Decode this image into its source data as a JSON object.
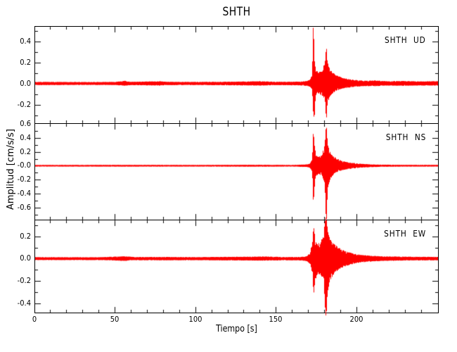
{
  "chart_data": {
    "type": "line",
    "title": "SHTH",
    "xlabel": "Tiempo [s]",
    "ylabel": "Amplitud [cm/s/s]",
    "trace_color": "#ff0000",
    "axis_color": "#000000",
    "background_color": "#ffffff",
    "grid": false,
    "x_range": [
      0,
      250
    ],
    "x_minor_step_s": 10,
    "x_major_ticks": [
      {
        "value": 0,
        "label": "0"
      },
      {
        "value": 50,
        "label": "50"
      },
      {
        "value": 100,
        "label": "100"
      },
      {
        "value": 150,
        "label": "150"
      },
      {
        "value": 200,
        "label": "200"
      }
    ],
    "y_major_step": 0.2,
    "y_minor_step": 0.1,
    "event": {
      "first_burst_s": 173,
      "second_burst_s": 181,
      "coda_end_s": 205
    },
    "panels": [
      {
        "label": "SHTH  UD",
        "component": "UD",
        "ylim": [
          -0.376,
          0.537
        ],
        "y_ticks": [
          {
            "value": 0.4,
            "label": "0.4"
          },
          {
            "value": 0.2,
            "label": "0.2"
          },
          {
            "value": 0.0,
            "label": "0.0"
          },
          {
            "value": -0.2,
            "label": "-0.2"
          }
        ],
        "seed": 3,
        "envelope": [
          [
            0,
            0.016,
            0.016
          ],
          [
            30,
            0.014,
            0.014
          ],
          [
            50,
            0.015,
            0.015
          ],
          [
            56,
            0.026,
            0.022
          ],
          [
            60,
            0.016,
            0.016
          ],
          [
            78,
            0.022,
            0.02
          ],
          [
            82,
            0.016,
            0.016
          ],
          [
            100,
            0.015,
            0.015
          ],
          [
            125,
            0.018,
            0.018
          ],
          [
            140,
            0.022,
            0.02
          ],
          [
            150,
            0.016,
            0.016
          ],
          [
            164,
            0.018,
            0.018
          ],
          [
            168,
            0.022,
            0.022
          ],
          [
            171,
            0.035,
            0.03
          ],
          [
            172.4,
            0.09,
            0.07
          ],
          [
            173.1,
            0.62,
            0.3
          ],
          [
            173.8,
            0.22,
            0.33
          ],
          [
            174.6,
            0.13,
            0.12
          ],
          [
            176,
            0.11,
            0.1
          ],
          [
            178.5,
            0.13,
            0.12
          ],
          [
            180.3,
            0.2,
            0.15
          ],
          [
            181.1,
            0.36,
            0.36
          ],
          [
            182,
            0.2,
            0.18
          ],
          [
            183.5,
            0.13,
            0.12
          ],
          [
            185.5,
            0.1,
            0.09
          ],
          [
            188,
            0.075,
            0.07
          ],
          [
            191,
            0.055,
            0.05
          ],
          [
            195,
            0.042,
            0.04
          ],
          [
            200,
            0.032,
            0.03
          ],
          [
            206,
            0.026,
            0.025
          ],
          [
            212,
            0.03,
            0.026
          ],
          [
            218,
            0.022,
            0.02
          ],
          [
            228,
            0.024,
            0.022
          ],
          [
            240,
            0.02,
            0.02
          ],
          [
            250,
            0.022,
            0.02
          ]
        ]
      },
      {
        "label": "SHTH  NS",
        "component": "NS",
        "ylim": [
          -0.773,
          0.6
        ],
        "y_ticks": [
          {
            "value": 0.6,
            "label": "0.6"
          },
          {
            "value": 0.4,
            "label": "0.4"
          },
          {
            "value": 0.2,
            "label": "0.2"
          },
          {
            "value": 0.0,
            "label": "-0.0"
          },
          {
            "value": -0.2,
            "label": "-0.2"
          },
          {
            "value": -0.4,
            "label": "-0.4"
          },
          {
            "value": -0.6,
            "label": "-0.6"
          }
        ],
        "seed": 11,
        "envelope": [
          [
            0,
            0.012,
            0.012
          ],
          [
            60,
            0.013,
            0.013
          ],
          [
            100,
            0.012,
            0.012
          ],
          [
            140,
            0.014,
            0.014
          ],
          [
            160,
            0.012,
            0.012
          ],
          [
            168,
            0.018,
            0.018
          ],
          [
            171,
            0.03,
            0.03
          ],
          [
            172.4,
            0.1,
            0.09
          ],
          [
            173.1,
            0.52,
            0.56
          ],
          [
            173.9,
            0.28,
            0.3
          ],
          [
            174.8,
            0.16,
            0.15
          ],
          [
            176.5,
            0.13,
            0.13
          ],
          [
            178.5,
            0.17,
            0.16
          ],
          [
            180.2,
            0.3,
            0.25
          ],
          [
            181.1,
            0.62,
            0.88
          ],
          [
            182,
            0.3,
            0.32
          ],
          [
            183.5,
            0.2,
            0.2
          ],
          [
            185.5,
            0.14,
            0.13
          ],
          [
            188,
            0.1,
            0.09
          ],
          [
            191,
            0.07,
            0.065
          ],
          [
            194.5,
            0.05,
            0.05
          ],
          [
            198,
            0.04,
            0.038
          ],
          [
            203,
            0.028,
            0.027
          ],
          [
            209,
            0.02,
            0.02
          ],
          [
            216,
            0.016,
            0.015
          ],
          [
            230,
            0.013,
            0.013
          ],
          [
            250,
            0.013,
            0.012
          ]
        ]
      },
      {
        "label": "SHTH  EW",
        "component": "EW",
        "ylim": [
          -0.481,
          0.342
        ],
        "y_ticks": [
          {
            "value": 0.2,
            "label": "0.2"
          },
          {
            "value": 0.0,
            "label": "0.0"
          },
          {
            "value": -0.2,
            "label": "-0.2"
          },
          {
            "value": -0.4,
            "label": "-0.4"
          }
        ],
        "seed": 7,
        "envelope": [
          [
            0,
            0.014,
            0.013
          ],
          [
            40,
            0.013,
            0.013
          ],
          [
            56,
            0.022,
            0.02
          ],
          [
            62,
            0.015,
            0.014
          ],
          [
            80,
            0.016,
            0.015
          ],
          [
            100,
            0.014,
            0.014
          ],
          [
            125,
            0.017,
            0.016
          ],
          [
            142,
            0.02,
            0.018
          ],
          [
            155,
            0.015,
            0.015
          ],
          [
            165,
            0.016,
            0.016
          ],
          [
            169,
            0.022,
            0.022
          ],
          [
            171.2,
            0.06,
            0.05
          ],
          [
            172.6,
            0.18,
            0.15
          ],
          [
            173.3,
            0.3,
            0.33
          ],
          [
            174.2,
            0.18,
            0.2
          ],
          [
            175.5,
            0.13,
            0.14
          ],
          [
            177.5,
            0.15,
            0.14
          ],
          [
            179.5,
            0.22,
            0.2
          ],
          [
            180.9,
            0.42,
            0.58
          ],
          [
            181.9,
            0.26,
            0.3
          ],
          [
            183.3,
            0.18,
            0.2
          ],
          [
            185.5,
            0.14,
            0.15
          ],
          [
            188,
            0.11,
            0.11
          ],
          [
            191,
            0.08,
            0.08
          ],
          [
            194.5,
            0.06,
            0.06
          ],
          [
            198.5,
            0.045,
            0.045
          ],
          [
            203,
            0.034,
            0.033
          ],
          [
            209,
            0.026,
            0.026
          ],
          [
            216,
            0.021,
            0.02
          ],
          [
            230,
            0.018,
            0.017
          ],
          [
            250,
            0.016,
            0.015
          ]
        ]
      }
    ]
  }
}
